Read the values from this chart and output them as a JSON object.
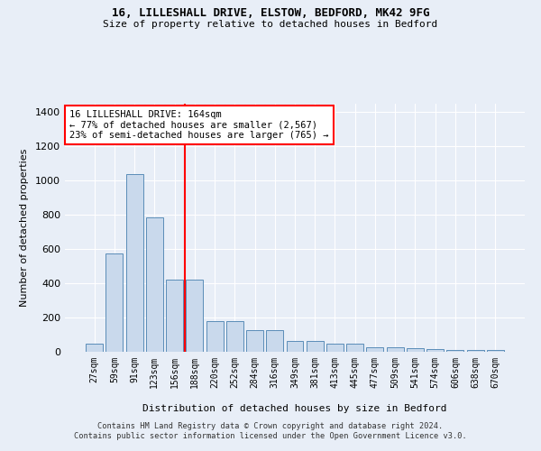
{
  "title_line1": "16, LILLESHALL DRIVE, ELSTOW, BEDFORD, MK42 9FG",
  "title_line2": "Size of property relative to detached houses in Bedford",
  "xlabel": "Distribution of detached houses by size in Bedford",
  "ylabel": "Number of detached properties",
  "bar_labels": [
    "27sqm",
    "59sqm",
    "91sqm",
    "123sqm",
    "156sqm",
    "188sqm",
    "220sqm",
    "252sqm",
    "284sqm",
    "316sqm",
    "349sqm",
    "381sqm",
    "413sqm",
    "445sqm",
    "477sqm",
    "509sqm",
    "541sqm",
    "574sqm",
    "606sqm",
    "638sqm",
    "670sqm"
  ],
  "bar_values": [
    47,
    575,
    1040,
    785,
    420,
    420,
    180,
    180,
    125,
    125,
    65,
    65,
    47,
    47,
    25,
    25,
    20,
    15,
    10,
    10,
    10
  ],
  "bar_color": "#c9d9ec",
  "bar_edge_color": "#5b8db8",
  "red_line_x": 4.5,
  "annotation_title": "16 LILLESHALL DRIVE: 164sqm",
  "annotation_line1": "← 77% of detached houses are smaller (2,567)",
  "annotation_line2": "23% of semi-detached houses are larger (765) →",
  "ylim": [
    0,
    1450
  ],
  "yticks": [
    0,
    200,
    400,
    600,
    800,
    1000,
    1200,
    1400
  ],
  "footnote1": "Contains HM Land Registry data © Crown copyright and database right 2024.",
  "footnote2": "Contains public sector information licensed under the Open Government Licence v3.0.",
  "bg_color": "#e8eef7",
  "plot_bg_color": "#e8eef7",
  "grid_color": "#ffffff"
}
